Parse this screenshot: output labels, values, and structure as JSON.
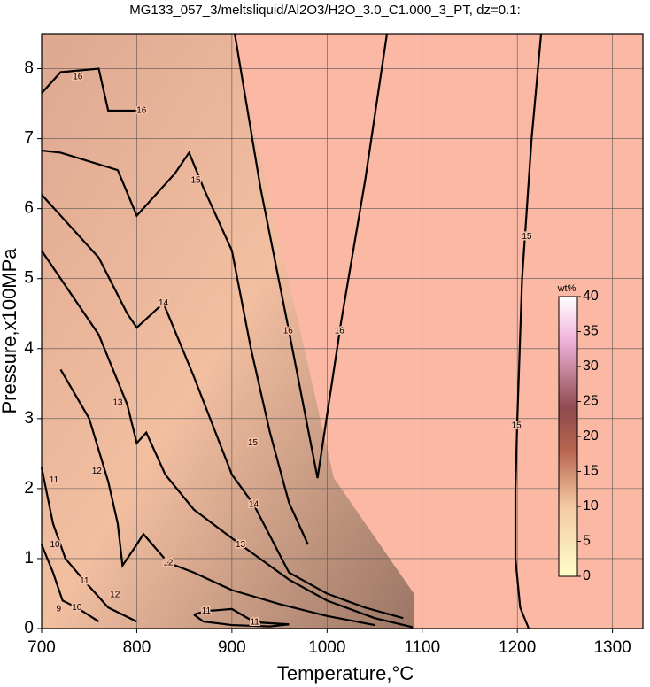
{
  "chart_data": {
    "type": "contour",
    "title": "MG133_057_3/meltsliquid/Al2O3/H2O_3.0_C1.000_3_PT, dz=0.1:",
    "xlabel": "Temperature,°C",
    "ylabel": "Pressure,x100MPa",
    "xlim": [
      700,
      1332
    ],
    "ylim": [
      0,
      8.5
    ],
    "xticks": [
      700,
      800,
      900,
      1000,
      1100,
      1200,
      1300
    ],
    "yticks": [
      0,
      1,
      2,
      3,
      4,
      5,
      6,
      7,
      8
    ],
    "grid": true,
    "colorbar": {
      "label": "wt%",
      "lim": [
        0,
        40
      ],
      "ticks": [
        0,
        5,
        10,
        15,
        20,
        25,
        30,
        35,
        40
      ]
    },
    "contours": [
      {
        "level": 15,
        "x": [
          1225,
          1215,
          1205,
          1200,
          1198,
          1198,
          1203,
          1212
        ],
        "y": [
          8.5,
          7,
          5,
          3,
          2,
          1,
          0.3,
          0
        ]
      },
      {
        "level": 16,
        "x": [
          903,
          930,
          960,
          990,
          1015,
          1040,
          1063
        ],
        "y": [
          8.5,
          6.3,
          4.25,
          2.15,
          4.4,
          6.4,
          8.5
        ]
      },
      {
        "level": 16,
        "x": [
          700,
          710,
          720,
          760,
          770,
          810
        ],
        "y": [
          7.65,
          7.8,
          7.95,
          8.0,
          7.4,
          7.4
        ]
      },
      {
        "level": 15,
        "x": [
          700,
          720,
          780,
          800,
          840,
          855,
          870,
          900,
          920,
          940,
          960,
          980
        ],
        "y": [
          6.83,
          6.8,
          6.55,
          5.9,
          6.5,
          6.8,
          6.3,
          5.4,
          4.0,
          2.8,
          1.8,
          1.2
        ]
      },
      {
        "level": 14,
        "x": [
          700,
          720,
          760,
          790,
          800,
          828,
          860,
          900,
          923,
          960,
          1000,
          1040,
          1080
        ],
        "y": [
          6.2,
          5.9,
          5.3,
          4.5,
          4.3,
          4.65,
          3.6,
          2.2,
          1.77,
          0.8,
          0.5,
          0.3,
          0.15
        ]
      },
      {
        "level": 13,
        "x": [
          700,
          720,
          760,
          790,
          800,
          810,
          830,
          860,
          909,
          960,
          1000,
          1050,
          1090
        ],
        "y": [
          5.4,
          5.0,
          4.2,
          3.2,
          2.65,
          2.8,
          2.2,
          1.7,
          1.2,
          0.7,
          0.4,
          0.15,
          0.02
        ]
      },
      {
        "level": 12,
        "x": [
          720,
          750,
          770,
          780,
          785,
          800,
          807,
          833,
          860,
          900,
          950,
          1000,
          1050
        ],
        "y": [
          3.7,
          3.0,
          2.1,
          1.5,
          0.9,
          1.2,
          1.35,
          0.94,
          0.8,
          0.55,
          0.35,
          0.18,
          0.05
        ]
      },
      {
        "level": 11,
        "x": [
          700,
          712,
          725,
          745,
          770,
          800
        ],
        "y": [
          2.3,
          1.5,
          1.0,
          0.68,
          0.3,
          0.1
        ]
      },
      {
        "level": 11,
        "x": [
          860,
          873,
          900,
          924,
          960,
          940,
          900,
          870,
          860
        ],
        "y": [
          0.2,
          0.25,
          0.28,
          0.09,
          0.06,
          0.03,
          0.05,
          0.1,
          0.2
        ]
      },
      {
        "level": 10,
        "x": [
          700,
          712,
          722,
          737,
          760
        ],
        "y": [
          1.2,
          0.8,
          0.4,
          0.3,
          0.1
        ]
      }
    ],
    "labels": [
      {
        "level": 16,
        "x": 959,
        "y": 4.25
      },
      {
        "level": 16,
        "x": 1013,
        "y": 4.25
      },
      {
        "level": 16,
        "x": 805,
        "y": 7.4
      },
      {
        "level": 16,
        "x": 738,
        "y": 7.88
      },
      {
        "level": 15,
        "x": 1210,
        "y": 5.6
      },
      {
        "level": 15,
        "x": 1199,
        "y": 2.9
      },
      {
        "level": 15,
        "x": 862,
        "y": 6.4
      },
      {
        "level": 15,
        "x": 922,
        "y": 2.65
      },
      {
        "level": 14,
        "x": 828,
        "y": 4.65
      },
      {
        "level": 14,
        "x": 923,
        "y": 1.77
      },
      {
        "level": 13,
        "x": 780,
        "y": 3.23
      },
      {
        "level": 13,
        "x": 909,
        "y": 1.2
      },
      {
        "level": 12,
        "x": 758,
        "y": 2.25
      },
      {
        "level": 12,
        "x": 833,
        "y": 0.94
      },
      {
        "level": 12,
        "x": 777,
        "y": 0.48
      },
      {
        "level": 11,
        "x": 713,
        "y": 2.12
      },
      {
        "level": 11,
        "x": 745,
        "y": 0.68
      },
      {
        "level": 11,
        "x": 873,
        "y": 0.25
      },
      {
        "level": 11,
        "x": 924,
        "y": 0.09
      },
      {
        "level": 10,
        "x": 714,
        "y": 1.2
      },
      {
        "level": 10,
        "x": 737,
        "y": 0.3
      },
      {
        "level": 9,
        "x": 718,
        "y": 0.28
      }
    ]
  }
}
